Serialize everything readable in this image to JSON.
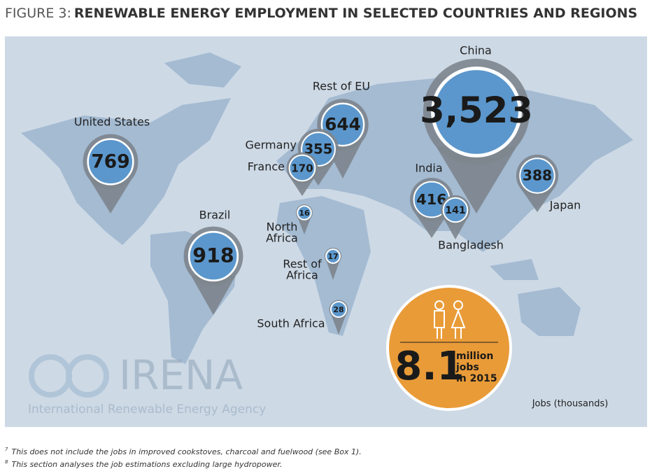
{
  "header": {
    "figure": "FIGURE 3:",
    "title": "RENEWABLE ENERGY EMPLOYMENT IN SELECTED COUNTRIES AND REGIONS"
  },
  "markers": [
    {
      "label_lines": [
        "China"
      ],
      "value": 3523,
      "value_label": "3,523"
    },
    {
      "label_lines": [
        "Rest of EU"
      ],
      "value": 644
    },
    {
      "label_lines": [
        "United States"
      ],
      "value": 769
    },
    {
      "label_lines": [
        "Germany"
      ],
      "value": 355
    },
    {
      "label_lines": [
        "France"
      ],
      "value": 170
    },
    {
      "label_lines": [
        "India"
      ],
      "value": 416
    },
    {
      "label_lines": [
        "Bangladesh"
      ],
      "value": 141
    },
    {
      "label_lines": [
        "Japan"
      ],
      "value": 388
    },
    {
      "label_lines": [
        "Brazil"
      ],
      "value": 918
    },
    {
      "label_lines": [
        "North",
        "Africa"
      ],
      "value": 16
    },
    {
      "label_lines": [
        "Rest of",
        "Africa"
      ],
      "value": 17
    },
    {
      "label_lines": [
        "South Africa"
      ],
      "value": 28
    }
  ],
  "total": {
    "value": 8.1,
    "text_lines": [
      "million",
      "jobs",
      "in 2015"
    ]
  },
  "legend": "Jobs (thousands)",
  "logo": {
    "name": "IRENA",
    "full_name": "International Renewable Energy Agency"
  },
  "footnotes": [
    {
      "mark": "7",
      "text": "This does not include the jobs in improved cookstoves, charcoal and fuelwood (see Box 1)."
    },
    {
      "mark": "8",
      "text": "This section analyses the job estimations excluding large hydropower."
    }
  ]
}
